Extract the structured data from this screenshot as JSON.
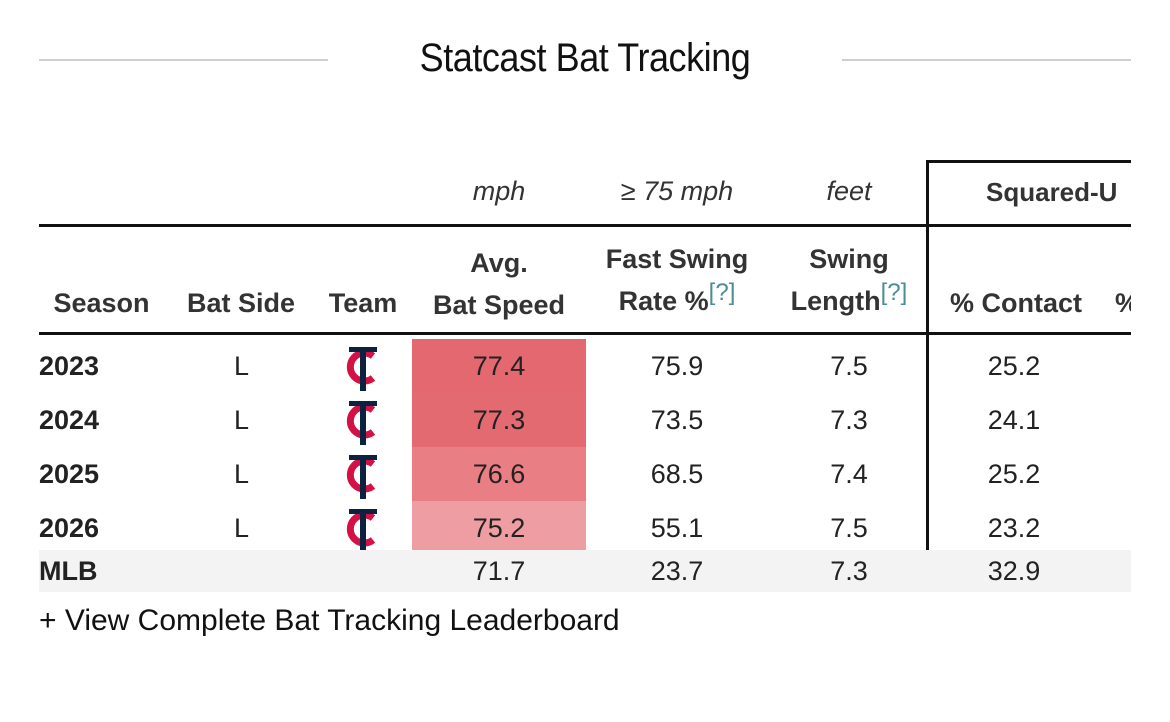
{
  "header": {
    "title": "Statcast Bat Tracking"
  },
  "units": {
    "avg_bat_speed": "mph",
    "fast_swing_rate": "≥ 75 mph",
    "swing_length": "feet"
  },
  "group_header": "Squared-U",
  "columns": {
    "season": "Season",
    "bat_side": "Bat Side",
    "team": "Team",
    "avg_bat_speed_line1": "Avg.",
    "avg_bat_speed_line2": "Bat Speed",
    "fast_swing_line1": "Fast Swing",
    "fast_swing_line2": "Rate %",
    "swing_length_line1": "Swing",
    "swing_length_line2": "Length",
    "help_marker": "[?]",
    "contact": "% Contact",
    "next_partial": "%"
  },
  "rows": [
    {
      "season": "2023",
      "bat_side": "L",
      "team_icon": "twins-tc-logo-icon",
      "avg_bat_speed": "77.4",
      "fast_swing_rate": "75.9",
      "swing_length": "7.5",
      "contact": "25.2",
      "speed_bg": "#e46870"
    },
    {
      "season": "2024",
      "bat_side": "L",
      "team_icon": "twins-tc-logo-icon",
      "avg_bat_speed": "77.3",
      "fast_swing_rate": "73.5",
      "swing_length": "7.3",
      "contact": "24.1",
      "speed_bg": "#e46a72"
    },
    {
      "season": "2025",
      "bat_side": "L",
      "team_icon": "twins-tc-logo-icon",
      "avg_bat_speed": "76.6",
      "fast_swing_rate": "68.5",
      "swing_length": "7.4",
      "contact": "25.2",
      "speed_bg": "#e97e84"
    },
    {
      "season": "2026",
      "bat_side": "L",
      "team_icon": "twins-tc-logo-icon",
      "avg_bat_speed": "75.2",
      "fast_swing_rate": "55.1",
      "swing_length": "7.5",
      "contact": "23.2",
      "speed_bg": "#ee9ea2"
    }
  ],
  "mlb_row": {
    "label": "MLB",
    "avg_bat_speed": "71.7",
    "fast_swing_rate": "23.7",
    "swing_length": "7.3",
    "contact": "32.9"
  },
  "footer": {
    "link_label": "+ View Complete Bat Tracking Leaderboard"
  },
  "colors": {
    "twins_navy": "#0c2340",
    "twins_red": "#d31145",
    "help_link": "#4a8d93"
  }
}
